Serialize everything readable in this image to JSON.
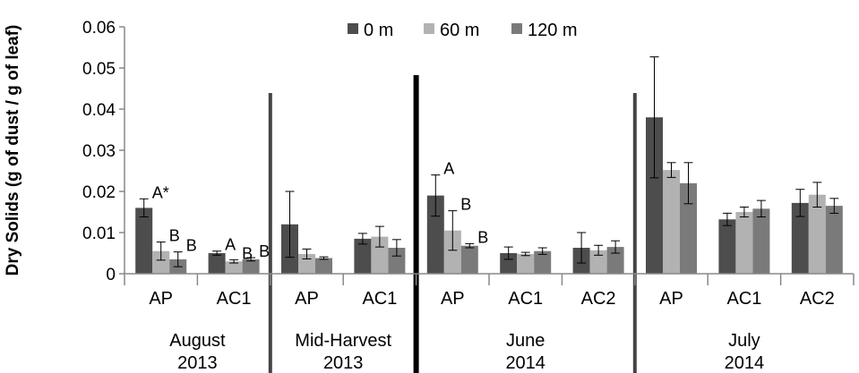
{
  "chart_data": {
    "type": "bar",
    "title": "",
    "ylabel": "Dry Solids (g of dust / g of leaf)",
    "xlabel": "",
    "ylim": [
      0,
      0.06
    ],
    "yticks": [
      "0",
      "0.01",
      "0.02",
      "0.03",
      "0.04",
      "0.05",
      "0.06"
    ],
    "grid": false,
    "legend_position": "top",
    "series": [
      {
        "name": "0 m",
        "color": "#4d4d4d"
      },
      {
        "name": "60 m",
        "color": "#b2b2b2"
      },
      {
        "name": "120 m",
        "color": "#7a7a7a"
      }
    ],
    "groups": [
      {
        "label_line1": "August",
        "label_line2": "2013",
        "categories": [
          {
            "label": "AP",
            "values": [
              0.016,
              0.0055,
              0.0035
            ],
            "errors": [
              0.0022,
              0.0022,
              0.0018
            ],
            "sig": [
              "A*",
              "B",
              "B"
            ]
          },
          {
            "label": "AC1",
            "values": [
              0.005,
              0.003,
              0.0035
            ],
            "errors": [
              0.0005,
              0.0004,
              0.0004
            ],
            "sig": [
              "A",
              "B",
              "B"
            ]
          }
        ]
      },
      {
        "label_line1": "Mid-Harvest",
        "label_line2": "2013",
        "categories": [
          {
            "label": "AP",
            "values": [
              0.012,
              0.0048,
              0.0038
            ],
            "errors": [
              0.008,
              0.0012,
              0.0003
            ],
            "sig": [
              "",
              "",
              ""
            ]
          },
          {
            "label": "AC1",
            "values": [
              0.0085,
              0.009,
              0.0063
            ],
            "errors": [
              0.0013,
              0.0025,
              0.002
            ],
            "sig": [
              "",
              "",
              ""
            ]
          }
        ]
      },
      {
        "label_line1": "June",
        "label_line2": "2014",
        "categories": [
          {
            "label": "AP",
            "values": [
              0.019,
              0.0105,
              0.0068
            ],
            "errors": [
              0.005,
              0.0048,
              0.0005
            ],
            "sig": [
              "A",
              "B",
              "B"
            ]
          },
          {
            "label": "AC1",
            "values": [
              0.005,
              0.0048,
              0.0055
            ],
            "errors": [
              0.0015,
              0.0004,
              0.0008
            ],
            "sig": [
              "",
              "",
              ""
            ]
          },
          {
            "label": "AC2",
            "values": [
              0.0063,
              0.0057,
              0.0065
            ],
            "errors": [
              0.0037,
              0.0012,
              0.0015
            ],
            "sig": [
              "",
              "",
              ""
            ]
          }
        ]
      },
      {
        "label_line1": "July",
        "label_line2": "2014",
        "categories": [
          {
            "label": "AP",
            "values": [
              0.038,
              0.0252,
              0.022
            ],
            "errors": [
              0.0147,
              0.0018,
              0.005
            ],
            "sig": [
              "",
              "",
              ""
            ]
          },
          {
            "label": "AC1",
            "values": [
              0.0132,
              0.015,
              0.0158
            ],
            "errors": [
              0.0015,
              0.0012,
              0.002
            ],
            "sig": [
              "",
              "",
              ""
            ]
          },
          {
            "label": "AC2",
            "values": [
              0.0172,
              0.0192,
              0.0165
            ],
            "errors": [
              0.0033,
              0.003,
              0.0018
            ],
            "sig": [
              "",
              "",
              ""
            ]
          }
        ]
      }
    ]
  }
}
